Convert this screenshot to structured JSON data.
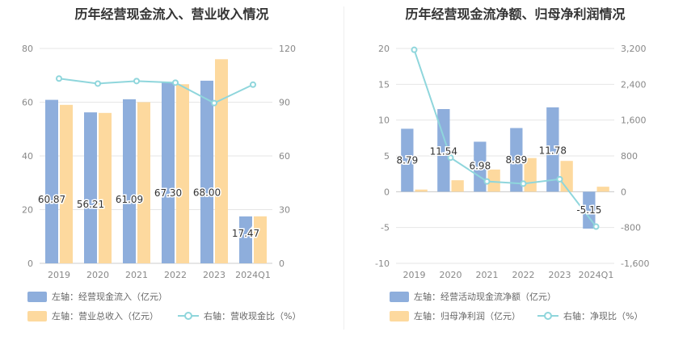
{
  "chart_data": [
    {
      "type": "bar",
      "title": "历年经营现金流入、营业收入情况",
      "categories": [
        "2019",
        "2020",
        "2021",
        "2022",
        "2023",
        "2024Q1"
      ],
      "series": [
        {
          "name": "左轴：经营现金流入（亿元）",
          "axis": "left",
          "type": "bar",
          "color": "#8eaedc",
          "values": [
            60.87,
            56.21,
            61.09,
            67.3,
            68.0,
            17.47
          ],
          "labels": [
            "60.87",
            "56.21",
            "61.09",
            "67.30",
            "68.00",
            "17.47"
          ]
        },
        {
          "name": "左轴：营业总收入（亿元）",
          "axis": "left",
          "type": "bar",
          "color": "#fdd99e",
          "values": [
            59.0,
            56.0,
            60.0,
            66.7,
            76.0,
            17.5
          ]
        },
        {
          "name": "右轴：营收现金比（%）",
          "axis": "right",
          "type": "line",
          "color": "#8fd6dc",
          "values": [
            103.2,
            100.4,
            101.8,
            100.9,
            89.5,
            99.8
          ]
        }
      ],
      "y_left": {
        "min": 0,
        "max": 80,
        "ticks": [
          "0",
          "20",
          "40",
          "60",
          "80"
        ]
      },
      "y_right": {
        "min": 0,
        "max": 120,
        "ticks": [
          "0",
          "30",
          "60",
          "90",
          "120"
        ]
      },
      "grid": true,
      "legend": "bottom"
    },
    {
      "type": "bar",
      "title": "历年经营现金流净额、归母净利润情况",
      "categories": [
        "2019",
        "2020",
        "2021",
        "2022",
        "2023",
        "2024Q1"
      ],
      "series": [
        {
          "name": "左轴：经营活动现金流净额（亿元）",
          "axis": "left",
          "type": "bar",
          "color": "#8eaedc",
          "values": [
            8.79,
            11.54,
            6.98,
            8.89,
            11.78,
            -5.15
          ],
          "labels": [
            "8.79",
            "11.54",
            "6.98",
            "8.89",
            "11.78",
            "-5.15"
          ]
        },
        {
          "name": "左轴：归母净利润（亿元）",
          "axis": "left",
          "type": "bar",
          "color": "#fdd99e",
          "values": [
            0.3,
            1.6,
            3.1,
            4.7,
            4.3,
            0.7
          ]
        },
        {
          "name": "右轴：净现比（%）",
          "axis": "right",
          "type": "line",
          "color": "#8fd6dc",
          "values": [
            3170,
            760,
            230,
            180,
            280,
            -780
          ]
        }
      ],
      "y_left": {
        "min": -10,
        "max": 20,
        "ticks": [
          "-10",
          "-5",
          "0",
          "5",
          "10",
          "15",
          "20"
        ]
      },
      "y_right": {
        "min": -1600,
        "max": 3200,
        "ticks": [
          "-1,600",
          "-800",
          "0",
          "800",
          "1,600",
          "2,400",
          "3,200"
        ]
      },
      "grid": true,
      "legend": "bottom"
    }
  ]
}
